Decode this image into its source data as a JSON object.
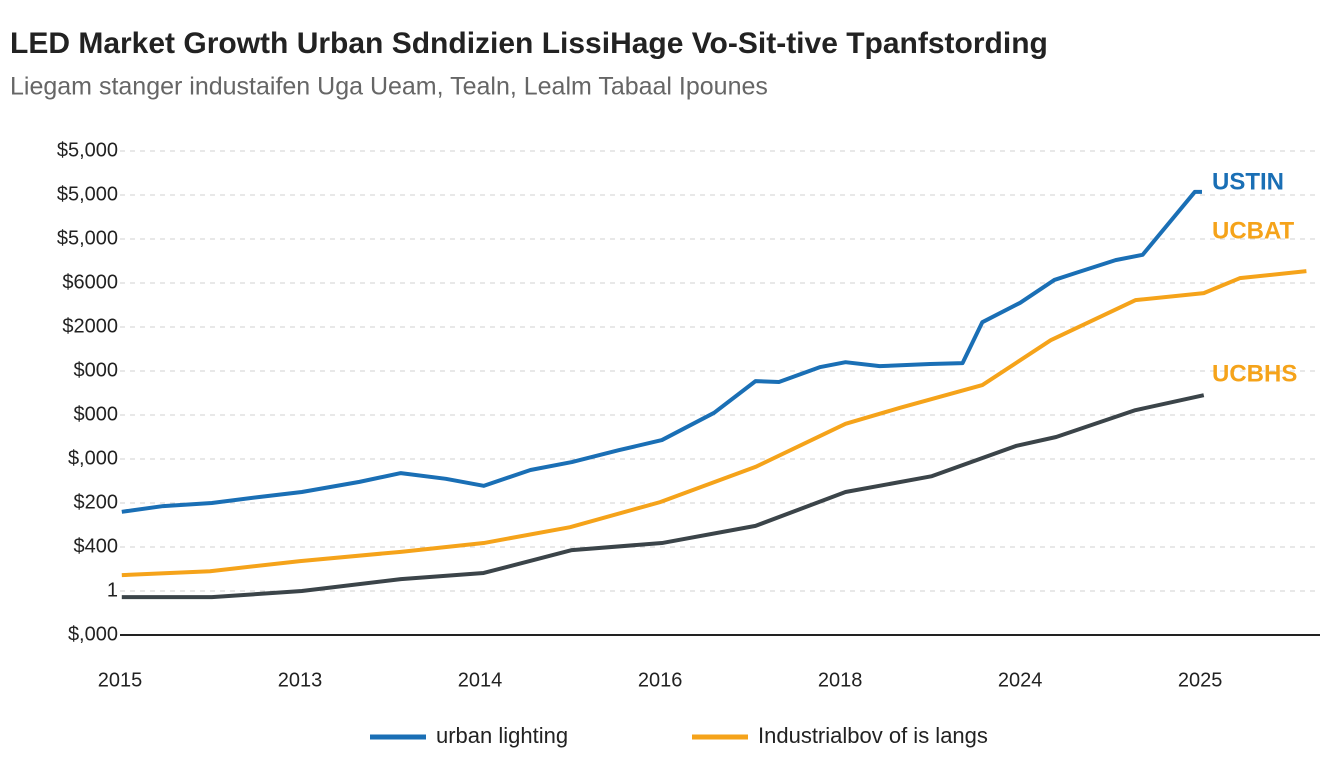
{
  "chart_data": {
    "type": "line",
    "title": "LED Market Growth Urban Sdndizien LissiHage Vo-Sit-tive Tpanfstording",
    "subtitle": "Liegam stanger industaifen Uga Ueam, Tealn, Lealm Tabaal Ipounes",
    "xlim": [
      0,
      6.61
    ],
    "xticks": [
      {
        "value": 0,
        "label": "2015"
      },
      {
        "value": 1,
        "label": "2013"
      },
      {
        "value": 2,
        "label": "2014"
      },
      {
        "value": 3,
        "label": "2016"
      },
      {
        "value": 4,
        "label": "2018"
      },
      {
        "value": 5,
        "label": "2024"
      },
      {
        "value": 6,
        "label": "2025"
      }
    ],
    "ylim": [
      0,
      11
    ],
    "yticks": [
      {
        "value": 0,
        "label": "$,000"
      },
      {
        "value": 1,
        "label": "1"
      },
      {
        "value": 2,
        "label": "$400"
      },
      {
        "value": 3,
        "label": "$200"
      },
      {
        "value": 4,
        "label": "$,000"
      },
      {
        "value": 5,
        "label": "$000"
      },
      {
        "value": 6,
        "label": "$000"
      },
      {
        "value": 7,
        "label": "$2000"
      },
      {
        "value": 8,
        "label": "$6000"
      },
      {
        "value": 9,
        "label": "$5,000"
      },
      {
        "value": 10,
        "label": "$5,000"
      },
      {
        "value": 11,
        "label": "$5,000"
      }
    ],
    "grid": true,
    "series": [
      {
        "name": "urban lighting",
        "color": "#1a6fb5",
        "x": [
          0.01,
          0.24,
          0.51,
          0.78,
          1.01,
          1.33,
          1.56,
          1.81,
          2.02,
          2.28,
          2.51,
          2.77,
          3.01,
          3.3,
          3.53,
          3.66,
          3.89,
          4.03,
          4.22,
          4.5,
          4.68,
          4.79,
          5.0,
          5.19,
          5.31,
          5.53,
          5.68,
          5.97,
          6.01
        ],
        "values": [
          2.8,
          2.93,
          3.0,
          3.14,
          3.25,
          3.48,
          3.68,
          3.55,
          3.39,
          3.75,
          3.93,
          4.2,
          4.43,
          5.05,
          5.77,
          5.75,
          6.09,
          6.2,
          6.11,
          6.16,
          6.18,
          7.11,
          7.55,
          8.07,
          8.23,
          8.52,
          8.64,
          10.07,
          10.07
        ]
      },
      {
        "name": "Industrialbov of is langs",
        "color": "#f5a31a",
        "x": [
          0.01,
          0.5,
          1.0,
          1.56,
          2.02,
          2.5,
          3.0,
          3.53,
          4.03,
          4.33,
          4.79,
          5.17,
          5.64,
          6.02,
          6.22,
          6.59
        ],
        "values": [
          1.36,
          1.45,
          1.68,
          1.89,
          2.09,
          2.45,
          3.02,
          3.82,
          4.8,
          5.16,
          5.68,
          6.7,
          7.61,
          7.77,
          8.11,
          8.27
        ]
      },
      {
        "color": "#3b4449",
        "x": [
          0.01,
          0.51,
          1.01,
          1.56,
          2.02,
          2.51,
          3.01,
          3.53,
          4.03,
          4.51,
          4.98,
          5.2,
          5.64,
          6.02
        ],
        "values": [
          0.86,
          0.86,
          1.0,
          1.27,
          1.41,
          1.93,
          2.09,
          2.48,
          3.25,
          3.61,
          4.3,
          4.5,
          5.11,
          5.45
        ]
      }
    ],
    "annotations": [
      {
        "text": "USTIN",
        "color": "#1a6fb5"
      },
      {
        "text": "UCBAT",
        "color": "#f5a31a"
      },
      {
        "text": "UCBHS",
        "color": "#f5a31a"
      }
    ]
  }
}
